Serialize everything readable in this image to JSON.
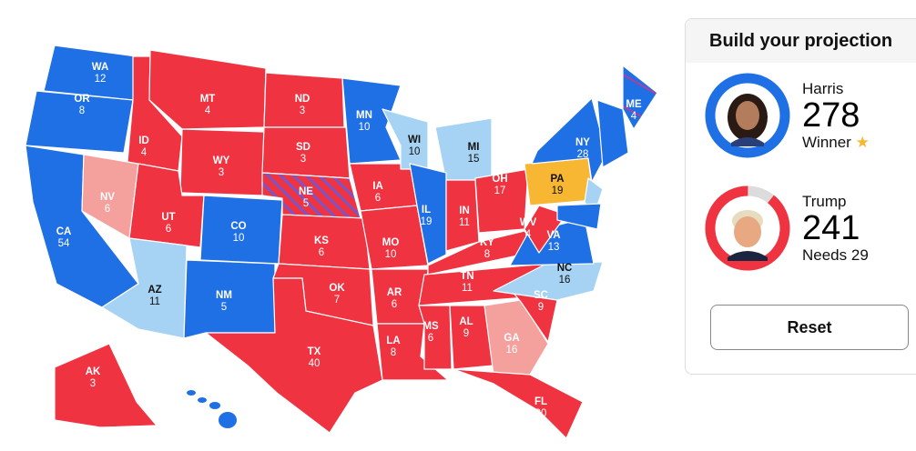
{
  "colors": {
    "dem": "#1f6fe5",
    "rep": "#ef3340",
    "lean_dem": "#a6d3f3",
    "lean_rep": "#f4a09c",
    "tossup": "#f7b733",
    "empty": "#dcdcdc"
  },
  "states": [
    {
      "abbr": "WA",
      "ev": "12",
      "status": "dem"
    },
    {
      "abbr": "OR",
      "ev": "8",
      "status": "dem"
    },
    {
      "abbr": "CA",
      "ev": "54",
      "status": "dem"
    },
    {
      "abbr": "NV",
      "ev": "6",
      "status": "lean_rep"
    },
    {
      "abbr": "ID",
      "ev": "4",
      "status": "rep"
    },
    {
      "abbr": "MT",
      "ev": "4",
      "status": "rep"
    },
    {
      "abbr": "WY",
      "ev": "3",
      "status": "rep"
    },
    {
      "abbr": "UT",
      "ev": "6",
      "status": "rep"
    },
    {
      "abbr": "AZ",
      "ev": "11",
      "status": "lean_dem"
    },
    {
      "abbr": "CO",
      "ev": "10",
      "status": "dem"
    },
    {
      "abbr": "NM",
      "ev": "5",
      "status": "dem"
    },
    {
      "abbr": "ND",
      "ev": "3",
      "status": "rep"
    },
    {
      "abbr": "SD",
      "ev": "3",
      "status": "rep"
    },
    {
      "abbr": "NE",
      "ev": "5",
      "status": "split"
    },
    {
      "abbr": "KS",
      "ev": "6",
      "status": "rep"
    },
    {
      "abbr": "OK",
      "ev": "7",
      "status": "rep"
    },
    {
      "abbr": "TX",
      "ev": "40",
      "status": "rep"
    },
    {
      "abbr": "MN",
      "ev": "10",
      "status": "dem"
    },
    {
      "abbr": "IA",
      "ev": "6",
      "status": "rep"
    },
    {
      "abbr": "MO",
      "ev": "10",
      "status": "rep"
    },
    {
      "abbr": "AR",
      "ev": "6",
      "status": "rep"
    },
    {
      "abbr": "LA",
      "ev": "8",
      "status": "rep"
    },
    {
      "abbr": "WI",
      "ev": "10",
      "status": "lean_dem"
    },
    {
      "abbr": "MI",
      "ev": "15",
      "status": "lean_dem"
    },
    {
      "abbr": "IL",
      "ev": "19",
      "status": "dem"
    },
    {
      "abbr": "IN",
      "ev": "11",
      "status": "rep"
    },
    {
      "abbr": "OH",
      "ev": "17",
      "status": "rep"
    },
    {
      "abbr": "KY",
      "ev": "8",
      "status": "rep"
    },
    {
      "abbr": "TN",
      "ev": "11",
      "status": "rep"
    },
    {
      "abbr": "MS",
      "ev": "6",
      "status": "rep"
    },
    {
      "abbr": "AL",
      "ev": "9",
      "status": "rep"
    },
    {
      "abbr": "GA",
      "ev": "16",
      "status": "lean_rep"
    },
    {
      "abbr": "FL",
      "ev": "30",
      "status": "rep"
    },
    {
      "abbr": "SC",
      "ev": "9",
      "status": "rep"
    },
    {
      "abbr": "NC",
      "ev": "16",
      "status": "lean_dem"
    },
    {
      "abbr": "VA",
      "ev": "13",
      "status": "dem"
    },
    {
      "abbr": "WV",
      "ev": "4",
      "status": "rep"
    },
    {
      "abbr": "PA",
      "ev": "19",
      "status": "tossup"
    },
    {
      "abbr": "NY",
      "ev": "28",
      "status": "dem"
    },
    {
      "abbr": "ME",
      "ev": "4",
      "status": "split_dem"
    },
    {
      "abbr": "AK",
      "ev": "3",
      "status": "rep"
    }
  ],
  "panel": {
    "title": "Build your projection",
    "candidates": [
      {
        "name": "Harris",
        "votes": "278",
        "status": "Winner",
        "party": "dem",
        "ring_fill": 1.0
      },
      {
        "name": "Trump",
        "votes": "241",
        "status": "Needs 29",
        "party": "rep",
        "ring_fill": 0.893
      }
    ],
    "reset_label": "Reset"
  }
}
